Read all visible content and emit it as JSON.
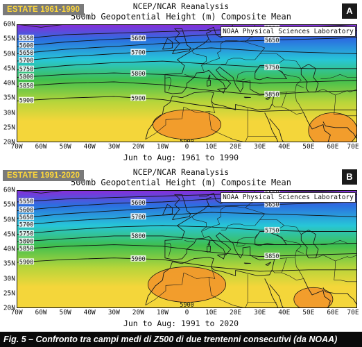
{
  "panels": [
    {
      "badge": "ESTATE 1961-1990",
      "letter": "A",
      "title_line1": "NCEP/NCAR Reanalysis",
      "title_line2": "500mb Geopotential Height (m) Composite Mean",
      "source": "NOAA Physical Sciences Laboratory",
      "date_range": "Jun to Aug: 1961 to 1990",
      "contours": [
        {
          "value": 5550,
          "label": "5550",
          "pts": [
            [
              -70,
              55
            ],
            [
              -50,
              56.5
            ],
            [
              -30,
              57
            ],
            [
              -10,
              57.5
            ],
            [
              10,
              58
            ],
            [
              30,
              58.5
            ],
            [
              50,
              59
            ],
            [
              70,
              60
            ]
          ]
        },
        {
          "value": 5600,
          "label": "5600",
          "pts": [
            [
              -70,
              52.5
            ],
            [
              -50,
              54
            ],
            [
              -30,
              55
            ],
            [
              -10,
              55.5
            ],
            [
              10,
              56.5
            ],
            [
              30,
              57
            ],
            [
              50,
              57.5
            ],
            [
              70,
              58
            ]
          ]
        },
        {
          "value": 5650,
          "label": "5650",
          "pts": [
            [
              -70,
              50
            ],
            [
              -50,
              51.5
            ],
            [
              -30,
              52.5
            ],
            [
              -10,
              53.5
            ],
            [
              10,
              54
            ],
            [
              30,
              54.5
            ],
            [
              50,
              55
            ],
            [
              70,
              55.5
            ]
          ]
        },
        {
          "value": 5700,
          "label": "5700",
          "pts": [
            [
              -70,
              47.5
            ],
            [
              -50,
              49
            ],
            [
              -30,
              50
            ],
            [
              -10,
              51
            ],
            [
              10,
              52
            ],
            [
              30,
              51
            ],
            [
              50,
              50.5
            ],
            [
              70,
              50
            ]
          ]
        },
        {
          "value": 5750,
          "label": "5750",
          "pts": [
            [
              -70,
              44.5
            ],
            [
              -50,
              46
            ],
            [
              -30,
              47
            ],
            [
              -10,
              47.5
            ],
            [
              10,
              46.5
            ],
            [
              30,
              45.5
            ],
            [
              50,
              45
            ],
            [
              70,
              45
            ]
          ]
        },
        {
          "value": 5800,
          "label": "5800",
          "pts": [
            [
              -70,
              42
            ],
            [
              -50,
              43
            ],
            [
              -30,
              43.5
            ],
            [
              -10,
              43
            ],
            [
              10,
              41.5
            ],
            [
              30,
              40
            ],
            [
              50,
              40.5
            ],
            [
              70,
              41
            ]
          ]
        },
        {
          "value": 5850,
          "label": "5850",
          "pts": [
            [
              -70,
              39
            ],
            [
              -50,
              40
            ],
            [
              -30,
              40.5
            ],
            [
              -10,
              39.5
            ],
            [
              10,
              37.5
            ],
            [
              30,
              36
            ],
            [
              50,
              37
            ],
            [
              70,
              37.5
            ]
          ]
        },
        {
          "value": 5900,
          "label": "5900",
          "pts": [
            [
              -70,
              34
            ],
            [
              -50,
              35
            ],
            [
              -30,
              35.5
            ],
            [
              -10,
              34.5
            ],
            [
              10,
              32
            ],
            [
              30,
              30.5
            ],
            [
              50,
              31
            ],
            [
              70,
              31
            ]
          ]
        }
      ],
      "highs": [
        {
          "value": 5900,
          "label": "5900",
          "lon": 0,
          "lat": 26,
          "rlon": 14,
          "rlat": 5
        },
        {
          "value": 5900,
          "label": "5900",
          "lon": 60,
          "lat": 24,
          "rlon": 10,
          "rlat": 6
        }
      ]
    },
    {
      "badge": "ESTATE 1991-2020",
      "letter": "B",
      "title_line1": "NCEP/NCAR Reanalysis",
      "title_line2": "500mb Geopotential Height (m) Composite Mean",
      "source": "NOAA Physical Sciences Laboratory",
      "date_range": "Jun to Aug: 1991 to 2020",
      "contours": [
        {
          "value": 5550,
          "label": "5550",
          "pts": [
            [
              -70,
              56
            ],
            [
              -50,
              57
            ],
            [
              -30,
              57.5
            ],
            [
              -10,
              58
            ],
            [
              10,
              58.5
            ],
            [
              30,
              59
            ],
            [
              50,
              59.5
            ],
            [
              70,
              60
            ]
          ]
        },
        {
          "value": 5600,
          "label": "5600",
          "pts": [
            [
              -70,
              53
            ],
            [
              -50,
              54.5
            ],
            [
              -30,
              55.5
            ],
            [
              -10,
              56
            ],
            [
              10,
              57
            ],
            [
              30,
              57.5
            ],
            [
              50,
              58
            ],
            [
              70,
              58.5
            ]
          ]
        },
        {
          "value": 5650,
          "label": "5650",
          "pts": [
            [
              -70,
              50.5
            ],
            [
              -50,
              52
            ],
            [
              -30,
              53
            ],
            [
              -10,
              54
            ],
            [
              10,
              54.5
            ],
            [
              30,
              55
            ],
            [
              50,
              55.5
            ],
            [
              70,
              56
            ]
          ]
        },
        {
          "value": 5700,
          "label": "5700",
          "pts": [
            [
              -70,
              48
            ],
            [
              -50,
              49.5
            ],
            [
              -30,
              50.5
            ],
            [
              -10,
              51.5
            ],
            [
              10,
              52.5
            ],
            [
              30,
              52
            ],
            [
              50,
              51.5
            ],
            [
              70,
              51
            ]
          ]
        },
        {
          "value": 5750,
          "label": "5750",
          "pts": [
            [
              -70,
              45
            ],
            [
              -50,
              46.5
            ],
            [
              -30,
              47.5
            ],
            [
              -10,
              48
            ],
            [
              10,
              47.5
            ],
            [
              30,
              46.5
            ],
            [
              50,
              46
            ],
            [
              70,
              46
            ]
          ]
        },
        {
          "value": 5800,
          "label": "5800",
          "pts": [
            [
              -70,
              42.5
            ],
            [
              -50,
              43.5
            ],
            [
              -30,
              44.5
            ],
            [
              -10,
              44.5
            ],
            [
              10,
              43
            ],
            [
              30,
              41.5
            ],
            [
              50,
              41.5
            ],
            [
              70,
              42
            ]
          ]
        },
        {
          "value": 5850,
          "label": "5850",
          "pts": [
            [
              -70,
              40
            ],
            [
              -50,
              41
            ],
            [
              -30,
              41.5
            ],
            [
              -10,
              41
            ],
            [
              10,
              39
            ],
            [
              30,
              37.5
            ],
            [
              50,
              38
            ],
            [
              70,
              38.5
            ]
          ]
        },
        {
          "value": 5900,
          "label": "5900",
          "pts": [
            [
              -70,
              35.5
            ],
            [
              -50,
              36.5
            ],
            [
              -30,
              37
            ],
            [
              -10,
              36.5
            ],
            [
              10,
              34
            ],
            [
              30,
              32.5
            ],
            [
              50,
              33
            ],
            [
              70,
              33
            ]
          ]
        }
      ],
      "highs": [
        {
          "value": 5900,
          "label": "5900",
          "lon": 0,
          "lat": 28,
          "rlon": 16,
          "rlat": 6
        },
        {
          "value": 5900,
          "label": "5900",
          "lon": 52,
          "lat": 23,
          "rlon": 8,
          "rlat": 4
        }
      ]
    }
  ],
  "lon_ticks": [
    "70W",
    "60W",
    "50W",
    "40W",
    "30W",
    "20W",
    "10W",
    "0",
    "10E",
    "20E",
    "30E",
    "40E",
    "50E",
    "60E",
    "70E"
  ],
  "lat_ticks": [
    "60N",
    "55N",
    "50N",
    "45N",
    "40N",
    "35N",
    "30N",
    "25N",
    "20N"
  ],
  "caption": "Fig. 5 – Confronto tra campi medi di Z500 di due trentenni consecutivi (da NOAA)",
  "colors": {
    "purple": "#8a2bd8",
    "blue": "#2b6fe0",
    "cyan": "#27c6d8",
    "green": "#3fbf4e",
    "lime": "#b8d53a",
    "yellow": "#f4d63a",
    "orange": "#f29a2c",
    "land": "#1a1a1a"
  }
}
